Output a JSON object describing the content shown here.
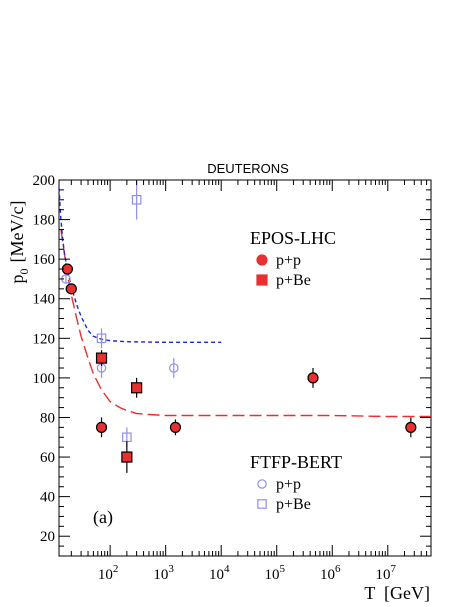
{
  "chart_data": {
    "type": "scatter",
    "title": "DEUTERONS",
    "xlabel": "T  [GeV]",
    "ylabel": "p",
    "ylabel_sub": "0",
    "ylabel_unit": "[MeV/c]",
    "panel_label": "(a)",
    "x_scale": "log",
    "xlim": [
      12,
      60000000
    ],
    "ylim": [
      10,
      200
    ],
    "x_ticks": [
      {
        "value": 100,
        "label": "10",
        "exp": "2"
      },
      {
        "value": 1000,
        "label": "10",
        "exp": "3"
      },
      {
        "value": 10000,
        "label": "10",
        "exp": "4"
      },
      {
        "value": 100000,
        "label": "10",
        "exp": "5"
      },
      {
        "value": 1000000,
        "label": "10",
        "exp": "6"
      },
      {
        "value": 10000000,
        "label": "10",
        "exp": "7"
      }
    ],
    "y_ticks": [
      20,
      40,
      60,
      80,
      100,
      120,
      140,
      160,
      180,
      200
    ],
    "legend_groups": [
      {
        "title": "EPOS-LHC",
        "entries": [
          {
            "label": "p+p",
            "marker": "circle",
            "fill": "#e83030",
            "stroke": "#e83030"
          },
          {
            "label": "p+Be",
            "marker": "square",
            "fill": "#e83030",
            "stroke": "#e83030"
          }
        ]
      },
      {
        "title": "FTFP-BERT",
        "entries": [
          {
            "label": "p+p",
            "marker": "circle-open",
            "fill": "none",
            "stroke": "#8f8fee"
          },
          {
            "label": "p+Be",
            "marker": "square-open",
            "fill": "none",
            "stroke": "#8f8fee"
          }
        ]
      }
    ],
    "series": [
      {
        "name": "EPOS-LHC p+p",
        "marker": "circle",
        "fill": "#e83030",
        "stroke": "#000000",
        "points": [
          {
            "x": 17,
            "y": 155,
            "err": 2
          },
          {
            "x": 20,
            "y": 145,
            "err": 2
          },
          {
            "x": 70,
            "y": 75,
            "err": 5
          },
          {
            "x": 1500,
            "y": 75,
            "err": 4
          },
          {
            "x": 450000,
            "y": 100,
            "err": 5
          },
          {
            "x": 26000000,
            "y": 75,
            "err": 5
          }
        ]
      },
      {
        "name": "EPOS-LHC p+Be",
        "marker": "square",
        "fill": "#e83030",
        "stroke": "#000000",
        "points": [
          {
            "x": 70,
            "y": 110,
            "err": 4
          },
          {
            "x": 200,
            "y": 60,
            "err": 8
          },
          {
            "x": 300,
            "y": 95,
            "err": 5
          }
        ]
      },
      {
        "name": "FTFP-BERT p+p",
        "marker": "circle-open",
        "fill": "none",
        "stroke": "#8f8fee",
        "points": [
          {
            "x": 16,
            "y": 150,
            "err": 2
          },
          {
            "x": 19,
            "y": 145,
            "err": 2
          },
          {
            "x": 70,
            "y": 105,
            "err": 5
          },
          {
            "x": 1400,
            "y": 105,
            "err": 5
          }
        ]
      },
      {
        "name": "FTFP-BERT p+Be",
        "marker": "square-open",
        "fill": "none",
        "stroke": "#8f8fee",
        "points": [
          {
            "x": 70,
            "y": 120,
            "err": 5
          },
          {
            "x": 200,
            "y": 70,
            "err": 5
          },
          {
            "x": 300,
            "y": 190,
            "err": 10
          }
        ]
      }
    ],
    "curves": [
      {
        "name": "EPOS-LHC fit",
        "style": "long-dash",
        "color": "#e83030",
        "points": [
          [
            13,
            175
          ],
          [
            15,
            163
          ],
          [
            17,
            152
          ],
          [
            20,
            142
          ],
          [
            25,
            130
          ],
          [
            30,
            121
          ],
          [
            40,
            110
          ],
          [
            50,
            102
          ],
          [
            70,
            94
          ],
          [
            100,
            88
          ],
          [
            150,
            85
          ],
          [
            200,
            83.5
          ],
          [
            300,
            82
          ],
          [
            500,
            81.5
          ],
          [
            1000,
            81
          ],
          [
            10000,
            81
          ],
          [
            100000,
            81
          ],
          [
            1000000,
            81
          ],
          [
            10000000,
            80.5
          ],
          [
            60000000,
            80.5
          ]
        ]
      },
      {
        "name": "FTFP-BERT fit",
        "style": "short-dash",
        "color": "#1a2bcc",
        "points": [
          [
            12,
            196
          ],
          [
            13,
            180
          ],
          [
            14,
            170
          ],
          [
            15,
            163
          ],
          [
            17,
            155
          ],
          [
            20,
            146
          ],
          [
            25,
            137
          ],
          [
            30,
            131
          ],
          [
            40,
            124
          ],
          [
            50,
            121
          ],
          [
            70,
            119.5
          ],
          [
            100,
            118.8
          ],
          [
            200,
            118.3
          ],
          [
            1000,
            118
          ],
          [
            10000,
            118
          ]
        ]
      }
    ]
  }
}
